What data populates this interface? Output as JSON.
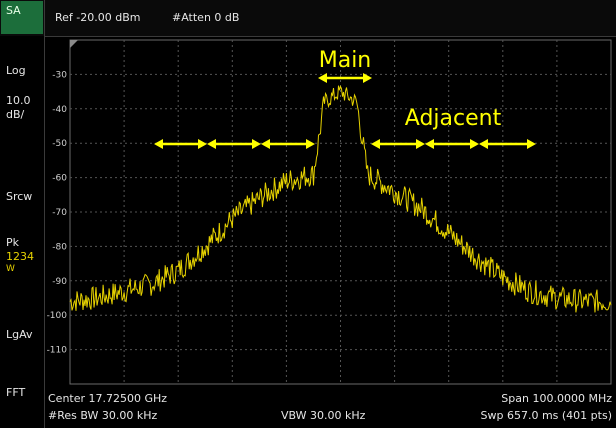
{
  "header": {
    "mode_badge": "SA",
    "ref_level": "Ref -20.00 dBm",
    "attenuation": "#Atten 0 dB"
  },
  "side_panel": {
    "scale_type": "Log",
    "scale_per_div_value": "10.0",
    "scale_per_div_unit": "dB/",
    "sweep_mode": "Srcw",
    "detector": "Pk",
    "traces_active": "1234",
    "trace_mode": "W",
    "average_type": "LgAv",
    "analysis_type": "FFT"
  },
  "footer": {
    "center_frequency": "Center 17.72500 GHz",
    "resolution_bw": "#Res BW 30.00 kHz",
    "video_bw": "VBW 30.00 kHz",
    "span": "Span 100.0000 MHz",
    "sweep_time": "Swp 657.0 ms (401 pts)"
  },
  "chart_data": {
    "type": "line",
    "y_unit": "dBm",
    "ylim": [
      -120,
      -20
    ],
    "y_tick_labels": [
      "-30",
      "-40",
      "-50",
      "-60",
      "-70",
      "-80",
      "-90",
      "-100",
      "-110"
    ],
    "x_divisions": 10,
    "y_divisions": 10,
    "grid": true,
    "trace_color": "#e6d200",
    "annotation_color": "#ffff00",
    "annotations": {
      "main_label": "Main",
      "adjacent_label": "Adjacent"
    },
    "series": [
      {
        "x": [
          0.0,
          0.05,
          0.1,
          0.15,
          0.2,
          0.25,
          0.3,
          0.35,
          0.4,
          0.45,
          0.47,
          0.5,
          0.53,
          0.55,
          0.6,
          0.65,
          0.7,
          0.75,
          0.8,
          0.85,
          0.9,
          0.95,
          1.0
        ],
        "values": [
          -96,
          -95,
          -93,
          -91,
          -87,
          -80,
          -72,
          -66,
          -61,
          -59,
          -38,
          -35,
          -38,
          -59,
          -64,
          -69,
          -76,
          -83,
          -89,
          -93,
          -95,
          -96,
          -96
        ]
      }
    ]
  }
}
